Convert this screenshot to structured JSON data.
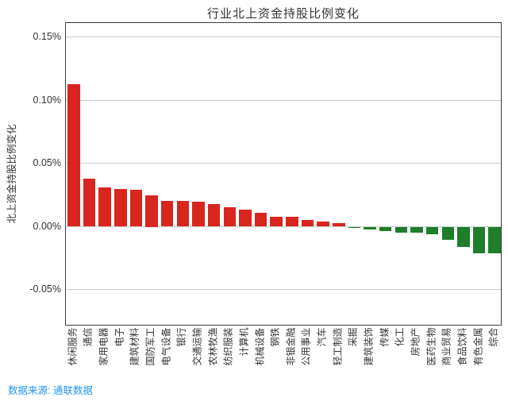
{
  "chart": {
    "title": "行业北上资金持股比例变化",
    "ylabel": "北上资金持股比例变化",
    "source": "数据来源: 通联数据",
    "colors": {
      "positive_bar": "#d8261e",
      "negative_bar": "#1e7e29",
      "gridline": "#cccccc",
      "spine": "#3a3a3a",
      "tick_text": "#333333",
      "source_text": "#2196f3"
    }
  },
  "chart_data": {
    "type": "bar",
    "title": "行业北上资金持股比例变化",
    "xlabel": "",
    "ylabel": "北上资金持股比例变化",
    "unit": "%",
    "grid": "horizontal",
    "legend": "none",
    "ylim": [
      -0.078,
      0.161
    ],
    "yticks": {
      "labels": [
        "0.15%",
        "0.10%",
        "0.05%",
        "0.00%",
        "-0.05%"
      ],
      "values": [
        0.15,
        0.1,
        0.05,
        0.0,
        -0.05
      ]
    },
    "categories": [
      "休闲服务",
      "通信",
      "家用电器",
      "电子",
      "建筑材料",
      "国防军工",
      "电气设备",
      "银行",
      "交通运输",
      "农林牧渔",
      "纺织服装",
      "计算机",
      "机械设备",
      "钢铁",
      "非银金融",
      "公用事业",
      "汽车",
      "轻工制造",
      "采掘",
      "建筑装饰",
      "传媒",
      "化工",
      "房地产",
      "医药生物",
      "商业贸易",
      "食品饮料",
      "有色金属",
      "综合"
    ],
    "values": [
      0.113,
      0.038,
      0.031,
      0.03,
      0.0295,
      0.025,
      0.0205,
      0.0205,
      0.0195,
      0.0178,
      0.0155,
      0.0135,
      0.011,
      0.008,
      0.008,
      0.0055,
      0.0042,
      0.0026,
      -0.0012,
      -0.002,
      -0.0032,
      -0.0045,
      -0.0045,
      -0.006,
      -0.0105,
      -0.016,
      -0.021,
      -0.021
    ],
    "color_rule": "positive values red, negative values green"
  }
}
